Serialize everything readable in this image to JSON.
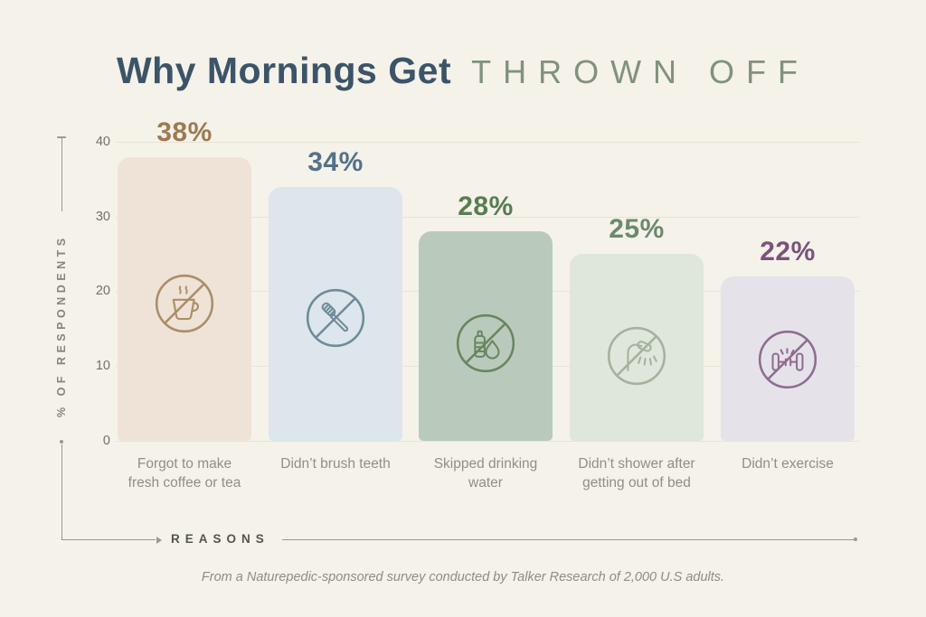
{
  "title": {
    "primary": "Why Mornings Get",
    "secondary": "THROWN OFF"
  },
  "y_axis": {
    "label": "% OF RESPONDENTS",
    "ticks": [
      "40",
      "30",
      "20",
      "10",
      "0"
    ]
  },
  "x_axis": {
    "label": "REASONS"
  },
  "footer": "From a Naturepedic-sponsored survey conducted by Talker Research of 2,000 U.S adults.",
  "colors": {
    "background": "#f5f2ea",
    "title_primary": "#3b5468",
    "title_secondary": "#80927e",
    "gridline": "#e6e3d9",
    "axis": "#989891",
    "tick_text": "#71716a",
    "category_text": "#8f8e88"
  },
  "chart_data": {
    "type": "bar",
    "title": "Why Mornings Get Thrown Off",
    "xlabel": "Reasons",
    "ylabel": "% of Respondents",
    "ylim": [
      0,
      40
    ],
    "yticks": [
      0,
      10,
      20,
      30,
      40
    ],
    "grid": true,
    "legend": false,
    "categories": [
      "Forgot to make fresh coffee or tea",
      "Didn’t brush teeth",
      "Skipped drinking water",
      "Didn’t shower after getting out of bed",
      "Didn’t exercise"
    ],
    "values": [
      38,
      34,
      28,
      25,
      22
    ],
    "bars": [
      {
        "label": "Forgot to make\nfresh coffee or tea",
        "value": 38,
        "pct": "38%",
        "fill": "#eee3d6",
        "accent": "#9d7a50",
        "icon_color": "#a98e68",
        "icon": "no-coffee-icon"
      },
      {
        "label": "Didn’t brush teeth",
        "value": 34,
        "pct": "34%",
        "fill": "#dde6ec",
        "accent": "#527288",
        "icon_color": "#6e8b99",
        "icon": "no-toothbrush-icon"
      },
      {
        "label": "Skipped drinking\nwater",
        "value": 28,
        "pct": "28%",
        "fill": "#b9cabd",
        "accent": "#587c52",
        "icon_color": "#69865f",
        "icon": "no-water-icon"
      },
      {
        "label": "Didn’t shower after\ngetting out of bed",
        "value": 25,
        "pct": "25%",
        "fill": "#dfe6db",
        "accent": "#6b8a6e",
        "icon_color": "#a2b29e",
        "icon": "no-shower-icon"
      },
      {
        "label": "Didn’t exercise",
        "value": 22,
        "pct": "22%",
        "fill": "#e6e2ea",
        "accent": "#7b527a",
        "icon_color": "#8d6d90",
        "icon": "no-exercise-icon"
      }
    ]
  }
}
